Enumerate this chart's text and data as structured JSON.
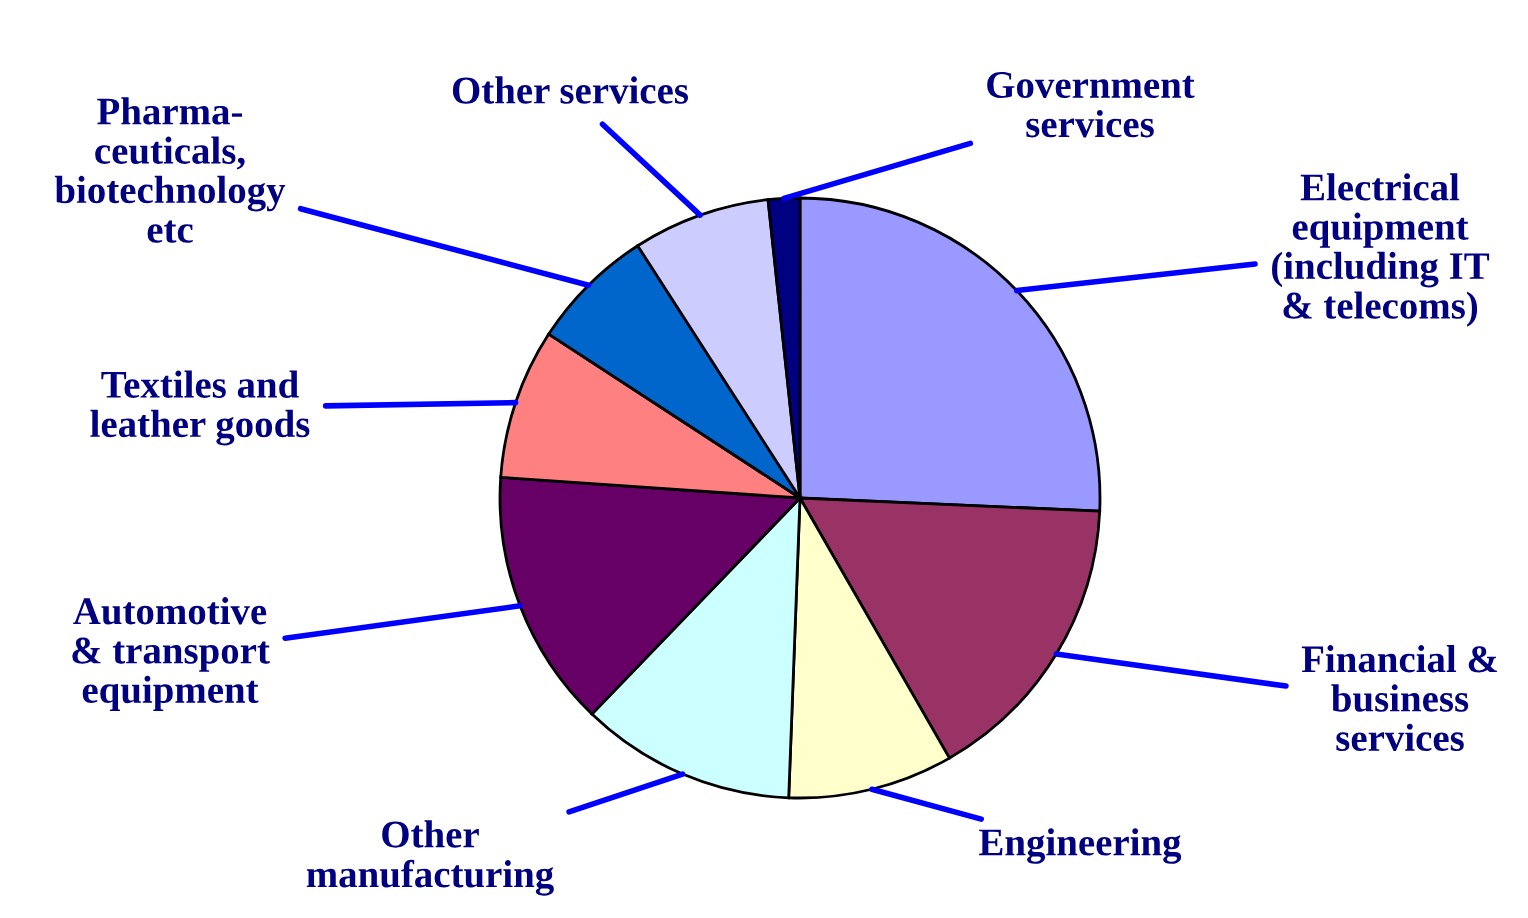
{
  "chart_data": {
    "type": "pie",
    "categories": [
      "Electrical\nequipment\n(including IT\n& telecoms)",
      "Financial &\nbusiness\nservices",
      "Engineering",
      "Other\nmanufacturing",
      "Automotive\n& transport\nequipment",
      "Textiles and\nleather goods",
      "Pharma-\nceuticals,\nbiotechnology\netc",
      "Other services",
      "Government\nservices"
    ],
    "values": [
      25.7,
      16.0,
      8.9,
      11.6,
      13.9,
      8.1,
      6.7,
      7.4,
      1.7
    ],
    "colors": [
      "#9999ff",
      "#993366",
      "#ffffcc",
      "#ccffff",
      "#660066",
      "#ff8080",
      "#0066cc",
      "#ccccff",
      "#000080"
    ]
  }
}
